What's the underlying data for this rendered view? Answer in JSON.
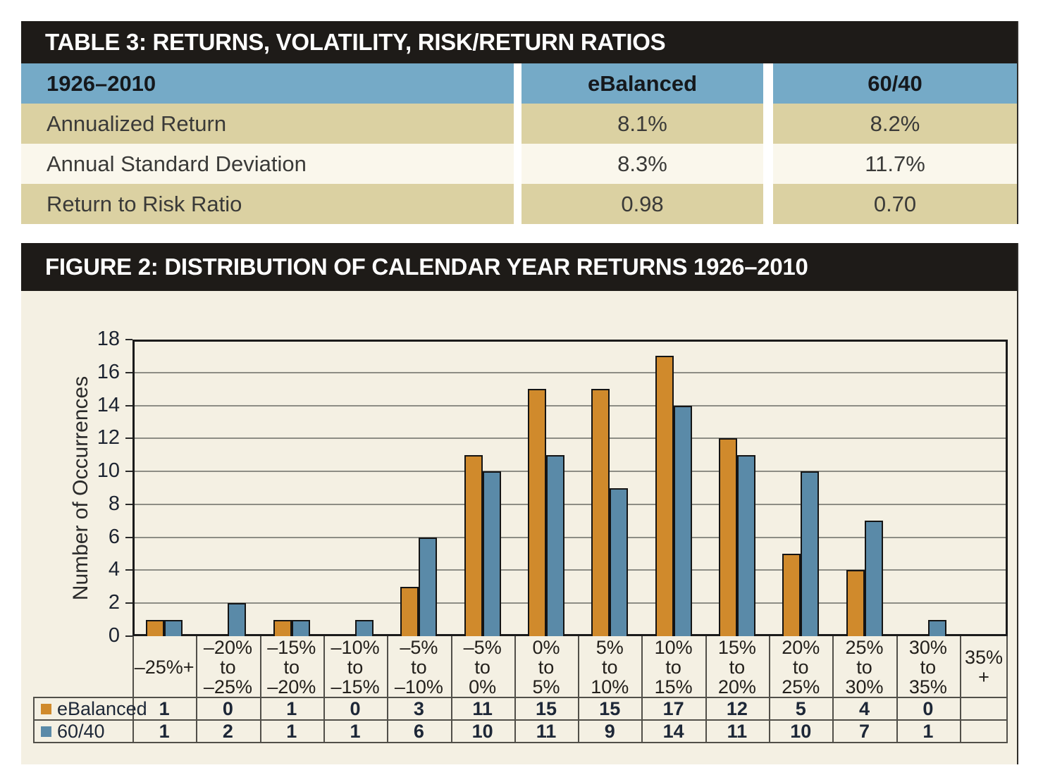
{
  "table3": {
    "title": "TABLE 3: RETURNS, VOLATILITY, RISK/RETURN RATIOS",
    "header": {
      "period": "1926–2010",
      "col1": "eBalanced",
      "col2": "60/40"
    },
    "rows": [
      {
        "label": "Annualized Return",
        "ebalanced": "8.1%",
        "sixty40": "8.2%"
      },
      {
        "label": "Annual Standard Deviation",
        "ebalanced": "8.3%",
        "sixty40": "11.7%"
      },
      {
        "label": "Return to Risk Ratio",
        "ebalanced": "0.98",
        "sixty40": "0.70"
      }
    ]
  },
  "figure2": {
    "title": "FIGURE 2: DISTRIBUTION OF CALENDAR YEAR RETURNS 1926–2010"
  },
  "chart_data": {
    "type": "bar",
    "title": "FIGURE 2: DISTRIBUTION OF CALENDAR YEAR RETURNS 1926–2010",
    "ylabel": "Number of Occurrences",
    "xlabel": "",
    "ylim": [
      0,
      18
    ],
    "ytick_step": 2,
    "grid": true,
    "legend_position": "table-below-left",
    "categories": [
      "–25%+",
      "–20% to –25%",
      "–15% to –20%",
      "–10% to –15%",
      "–5% to –10%",
      "–5% to 0%",
      "0% to 5%",
      "5% to 10%",
      "10% to 15%",
      "15% to 20%",
      "20% to 25%",
      "25% to 30%",
      "30% to 35%",
      "35%+"
    ],
    "category_labels_display": [
      "–25%+",
      "–20%\nto\n–25%",
      "–15%\nto\n–20%",
      "–10%\nto\n–15%",
      "–5%\nto\n–10%",
      "–5%\nto\n0%",
      "0%\nto\n5%",
      "5%\nto\n10%",
      "10%\nto\n15%",
      "15%\nto\n20%",
      "20%\nto\n25%",
      "25%\nto\n30%",
      "30%\nto\n35%",
      "35%\n+"
    ],
    "series": [
      {
        "name": "eBalanced",
        "color": "#d08a2c",
        "values": [
          1,
          0,
          1,
          0,
          3,
          11,
          15,
          15,
          17,
          12,
          5,
          4,
          0,
          null
        ]
      },
      {
        "name": "60/40",
        "color": "#5a8aa8",
        "values": [
          1,
          2,
          1,
          1,
          6,
          10,
          11,
          9,
          14,
          11,
          10,
          7,
          1,
          null
        ]
      }
    ],
    "colors": {
      "plot_frame": "#1b1b1b",
      "gridline": "#8d8d85",
      "table_grid": "#514f49",
      "figure_bg": "#f4f0e3",
      "text": "#23201c"
    }
  }
}
